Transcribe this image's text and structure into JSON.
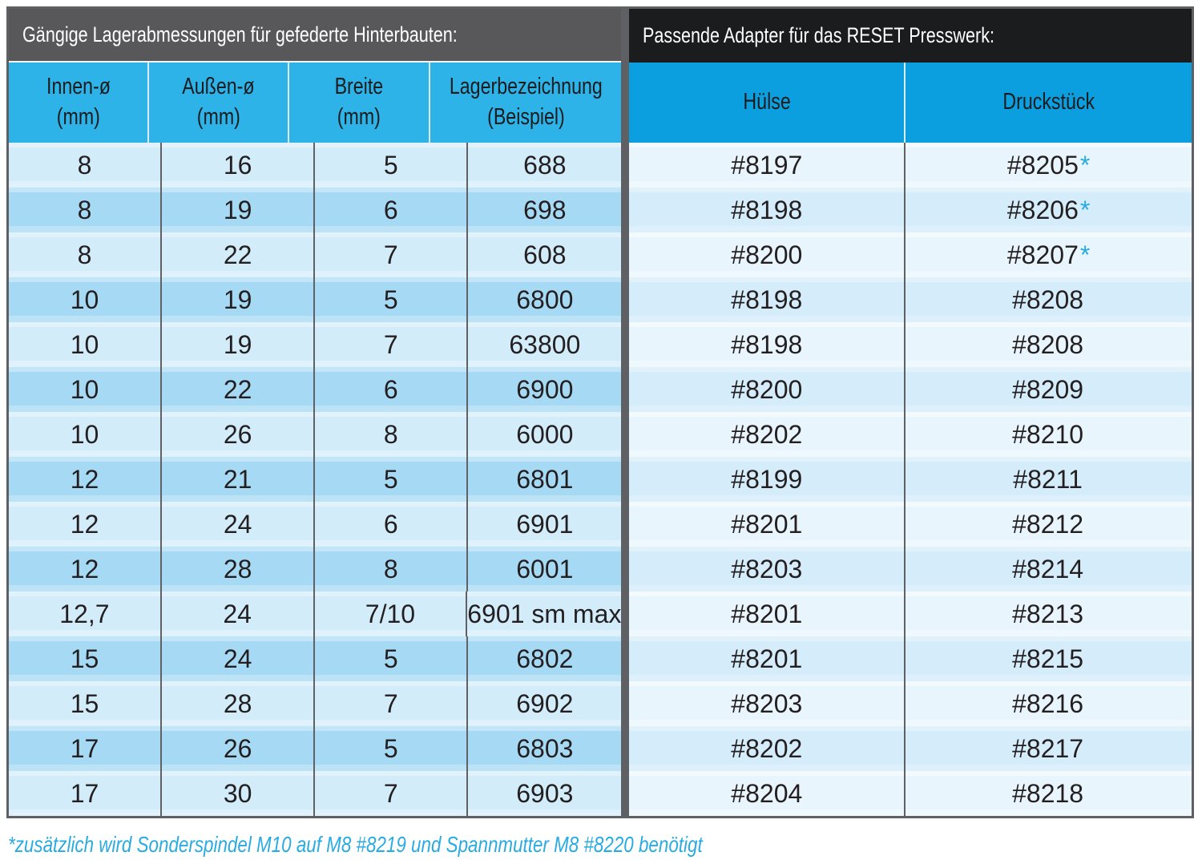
{
  "left": {
    "title": "Gängige Lagerabmessungen für gefederte Hinterbauten:",
    "columns": [
      {
        "l1": "Innen-ø",
        "l2": "(mm)"
      },
      {
        "l1": "Außen-ø",
        "l2": "(mm)"
      },
      {
        "l1": "Breite",
        "l2": "(mm)"
      },
      {
        "l1": "Lagerbezeichnung",
        "l2": "(Beispiel)"
      }
    ],
    "rows": [
      [
        "8",
        "16",
        "5",
        "688"
      ],
      [
        "8",
        "19",
        "6",
        "698"
      ],
      [
        "8",
        "22",
        "7",
        "608"
      ],
      [
        "10",
        "19",
        "5",
        "6800"
      ],
      [
        "10",
        "19",
        "7",
        "63800"
      ],
      [
        "10",
        "22",
        "6",
        "6900"
      ],
      [
        "10",
        "26",
        "8",
        "6000"
      ],
      [
        "12",
        "21",
        "5",
        "6801"
      ],
      [
        "12",
        "24",
        "6",
        "6901"
      ],
      [
        "12",
        "28",
        "8",
        "6001"
      ],
      [
        "12,7",
        "24",
        "7/10",
        "6901 sm max"
      ],
      [
        "15",
        "24",
        "5",
        "6802"
      ],
      [
        "15",
        "28",
        "7",
        "6902"
      ],
      [
        "17",
        "26",
        "5",
        "6803"
      ],
      [
        "17",
        "30",
        "7",
        "6903"
      ]
    ]
  },
  "right": {
    "title": "Passende Adapter für das RESET Presswerk:",
    "columns": [
      "Hülse",
      "Druckstück"
    ],
    "rows": [
      [
        "#8197",
        "#8205",
        "*"
      ],
      [
        "#8198",
        "#8206",
        "*"
      ],
      [
        "#8200",
        "#8207",
        "*"
      ],
      [
        "#8198",
        "#8208",
        ""
      ],
      [
        "#8198",
        "#8208",
        ""
      ],
      [
        "#8200",
        "#8209",
        ""
      ],
      [
        "#8202",
        "#8210",
        ""
      ],
      [
        "#8199",
        "#8211",
        ""
      ],
      [
        "#8201",
        "#8212",
        ""
      ],
      [
        "#8203",
        "#8214",
        ""
      ],
      [
        "#8201",
        "#8213",
        ""
      ],
      [
        "#8201",
        "#8215",
        ""
      ],
      [
        "#8203",
        "#8216",
        ""
      ],
      [
        "#8202",
        "#8217",
        ""
      ],
      [
        "#8204",
        "#8218",
        ""
      ]
    ]
  },
  "footnote": "*zusätzlich wird Sonderspindel M10 auf M8 #8219 und Spannmutter M8 #8220 benötigt",
  "colors": {
    "accent_blue": "#29abe2",
    "header_blue_left": "#2db3e7",
    "header_blue_right": "#0b9fe0",
    "titlebar_gray": "#58585a",
    "titlebar_black": "#1b1c1e"
  }
}
